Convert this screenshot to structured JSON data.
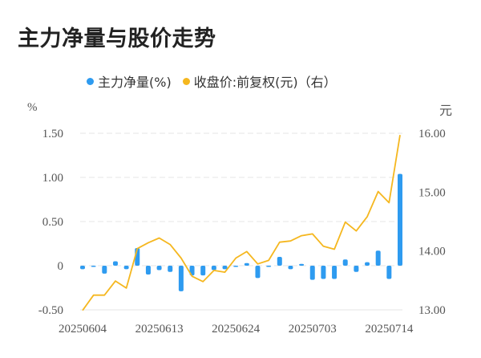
{
  "title": "主力净量与股价走势",
  "legend": [
    {
      "label": "主力净量(%)",
      "color": "#2E9BF0"
    },
    {
      "label": "收盘价:前复权(元)（右）",
      "color": "#F5B71F"
    }
  ],
  "axes": {
    "left_unit": "%",
    "right_unit": "元",
    "left_ticks": [
      "1.50",
      "1.00",
      "0.50",
      "0",
      "-0.50"
    ],
    "right_ticks": [
      "16.00",
      "15.00",
      "14.00",
      "13.00"
    ],
    "x_labels": [
      {
        "index": 0,
        "label": "20250604"
      },
      {
        "index": 7,
        "label": "20250613"
      },
      {
        "index": 14,
        "label": "20250624"
      },
      {
        "index": 21,
        "label": "20250703"
      },
      {
        "index": 28,
        "label": "20250714"
      }
    ]
  },
  "colors": {
    "bar": "#2E9BF0",
    "line": "#F5B71F",
    "grid": "#E6E6E6",
    "axis": "#E6E6E6"
  },
  "chart_data": {
    "type": "bar+line",
    "title": "主力净量与股价走势",
    "xlabel": "",
    "ylabel_left": "%",
    "ylabel_right": "元",
    "ylim_left": [
      -0.5,
      1.5
    ],
    "ylim_right": [
      13.0,
      16.0
    ],
    "grid": true,
    "legend_position": "top",
    "x_tick_labels": [
      "20250604",
      "20250613",
      "20250624",
      "20250703",
      "20250714"
    ],
    "x_tick_indices": [
      0,
      7,
      14,
      21,
      28
    ],
    "n_points": 30,
    "series": [
      {
        "name": "主力净量(%)",
        "type": "bar",
        "axis": "left",
        "values": [
          -0.04,
          -0.01,
          -0.09,
          0.05,
          -0.04,
          0.2,
          -0.1,
          -0.05,
          -0.07,
          -0.29,
          -0.11,
          -0.11,
          -0.05,
          -0.04,
          -0.01,
          0.03,
          -0.14,
          -0.01,
          0.1,
          -0.04,
          0.02,
          -0.16,
          -0.15,
          -0.15,
          0.07,
          -0.07,
          0.04,
          0.17,
          -0.15,
          1.04
        ]
      },
      {
        "name": "收盘价:前复权(元)（右）",
        "type": "line",
        "axis": "right",
        "values": [
          12.99,
          13.25,
          13.25,
          13.49,
          13.37,
          14.04,
          14.14,
          14.22,
          14.11,
          13.88,
          13.57,
          13.48,
          13.67,
          13.64,
          13.88,
          13.99,
          13.78,
          13.84,
          14.15,
          14.17,
          14.26,
          14.29,
          14.08,
          14.03,
          14.49,
          14.34,
          14.58,
          15.01,
          14.82,
          15.97
        ]
      }
    ]
  }
}
